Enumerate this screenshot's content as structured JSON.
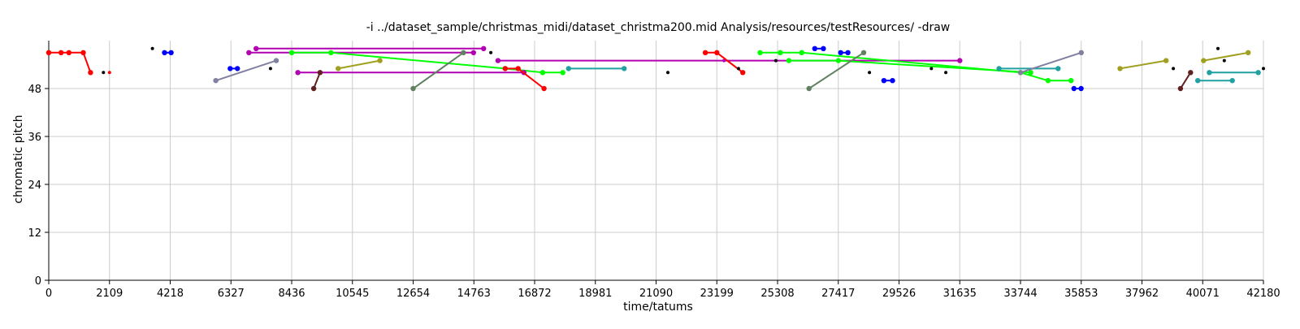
{
  "chart_data": {
    "type": "scatter",
    "title": "-i ../dataset_sample/christmas_midi/dataset_christma200.mid Analysis/resources/testResources/ -draw",
    "xlabel": "time/tatums",
    "ylabel": "chromatic pitch",
    "xlim": [
      0,
      42180
    ],
    "ylim": [
      0,
      60
    ],
    "x_ticks": [
      0,
      2109,
      4218,
      6327,
      8436,
      10545,
      12654,
      14763,
      16872,
      18981,
      21090,
      23199,
      25308,
      27417,
      29526,
      31635,
      33744,
      35853,
      37962,
      40071,
      42180
    ],
    "y_ticks": [
      0,
      12,
      24,
      36,
      48
    ],
    "grid": true,
    "legend": "none",
    "series": [
      {
        "color": "#ff0000",
        "points": [
          [
            0,
            57
          ],
          [
            430,
            57
          ],
          [
            700,
            57
          ],
          [
            1200,
            57
          ],
          [
            1450,
            52
          ]
        ]
      },
      {
        "color": "#ff0000",
        "points": [
          [
            2109,
            52
          ]
        ]
      },
      {
        "color": "#000000",
        "points": [
          [
            1900,
            52
          ]
        ]
      },
      {
        "color": "#000000",
        "points": [
          [
            3600,
            58
          ]
        ]
      },
      {
        "color": "#0000ff",
        "points": [
          [
            4020,
            57
          ],
          [
            4250,
            57
          ]
        ]
      },
      {
        "color": "#8080a0",
        "points": [
          [
            5800,
            50
          ],
          [
            7900,
            55
          ]
        ]
      },
      {
        "color": "#0000ff",
        "points": [
          [
            6300,
            53
          ],
          [
            6550,
            53
          ]
        ]
      },
      {
        "color": "#000000",
        "points": [
          [
            7700,
            53
          ]
        ]
      },
      {
        "color": "#b000b0",
        "points": [
          [
            6950,
            57
          ],
          [
            14750,
            57
          ]
        ]
      },
      {
        "color": "#b000b0",
        "points": [
          [
            7200,
            58
          ],
          [
            15100,
            58
          ]
        ]
      },
      {
        "color": "#000000",
        "points": [
          [
            15350,
            57
          ]
        ]
      },
      {
        "color": "#00ff00",
        "points": [
          [
            8436,
            57
          ],
          [
            9800,
            57
          ],
          [
            15850,
            53
          ],
          [
            17150,
            52
          ],
          [
            17850,
            52
          ]
        ]
      },
      {
        "color": "#b000b0",
        "points": [
          [
            8650,
            52
          ],
          [
            16500,
            52
          ]
        ]
      },
      {
        "color": "#602020",
        "points": [
          [
            9200,
            48
          ],
          [
            9420,
            52
          ]
        ]
      },
      {
        "color": "#a0a020",
        "points": [
          [
            10050,
            53
          ],
          [
            11500,
            55
          ]
        ]
      },
      {
        "color": "#608060",
        "points": [
          [
            12654,
            48
          ],
          [
            14400,
            57
          ]
        ]
      },
      {
        "color": "#b000b0",
        "points": [
          [
            15600,
            55
          ],
          [
            31635,
            55
          ]
        ]
      },
      {
        "color": "#ff0000",
        "points": [
          [
            15850,
            53
          ],
          [
            16300,
            53
          ],
          [
            17200,
            48
          ]
        ]
      },
      {
        "color": "#20a0a0",
        "points": [
          [
            18050,
            53
          ],
          [
            19981,
            53
          ]
        ]
      },
      {
        "color": "#000000",
        "points": [
          [
            21500,
            52
          ]
        ]
      },
      {
        "color": "#ff0000",
        "points": [
          [
            22800,
            57
          ],
          [
            23199,
            57
          ],
          [
            24100,
            52
          ]
        ]
      },
      {
        "color": "#b000b0",
        "points": [
          [
            23450,
            55
          ]
        ]
      },
      {
        "color": "#000000",
        "points": [
          [
            23950,
            53
          ]
        ]
      },
      {
        "color": "#00ff00",
        "points": [
          [
            24700,
            57
          ],
          [
            25400,
            57
          ],
          [
            26150,
            57
          ],
          [
            33744,
            52
          ],
          [
            34700,
            50
          ],
          [
            35500,
            50
          ]
        ]
      },
      {
        "color": "#000000",
        "points": [
          [
            25250,
            55
          ]
        ]
      },
      {
        "color": "#00ff00",
        "points": [
          [
            25700,
            55
          ],
          [
            27417,
            55
          ],
          [
            34100,
            52
          ]
        ]
      },
      {
        "color": "#0000ff",
        "points": [
          [
            26600,
            58
          ],
          [
            26900,
            58
          ]
        ]
      },
      {
        "color": "#608060",
        "points": [
          [
            26400,
            48
          ],
          [
            28300,
            57
          ]
        ]
      },
      {
        "color": "#0000ff",
        "points": [
          [
            27500,
            57
          ],
          [
            27750,
            57
          ]
        ]
      },
      {
        "color": "#000000",
        "points": [
          [
            28500,
            52
          ]
        ]
      },
      {
        "color": "#0000ff",
        "points": [
          [
            29000,
            50
          ],
          [
            29300,
            50
          ]
        ]
      },
      {
        "color": "#000000",
        "points": [
          [
            30650,
            53
          ]
        ]
      },
      {
        "color": "#000000",
        "points": [
          [
            31150,
            52
          ]
        ]
      },
      {
        "color": "#20a0a0",
        "points": [
          [
            33000,
            53
          ],
          [
            35050,
            53
          ]
        ]
      },
      {
        "color": "#8080a0",
        "points": [
          [
            33744,
            52
          ],
          [
            35853,
            57
          ]
        ]
      },
      {
        "color": "#0000ff",
        "points": [
          [
            35600,
            48
          ],
          [
            35850,
            48
          ]
        ]
      },
      {
        "color": "#a0a020",
        "points": [
          [
            37200,
            53
          ],
          [
            38800,
            55
          ]
        ]
      },
      {
        "color": "#000000",
        "points": [
          [
            39050,
            53
          ]
        ]
      },
      {
        "color": "#602020",
        "points": [
          [
            39300,
            48
          ],
          [
            39650,
            52
          ]
        ]
      },
      {
        "color": "#20a0a0",
        "points": [
          [
            39900,
            50
          ],
          [
            41100,
            50
          ]
        ]
      },
      {
        "color": "#20a0a0",
        "points": [
          [
            40300,
            52
          ],
          [
            42000,
            52
          ]
        ]
      },
      {
        "color": "#a0a020",
        "points": [
          [
            40100,
            55
          ],
          [
            41650,
            57
          ]
        ]
      },
      {
        "color": "#000000",
        "points": [
          [
            40600,
            58
          ]
        ]
      },
      {
        "color": "#000000",
        "points": [
          [
            40820,
            55
          ]
        ]
      },
      {
        "color": "#000000",
        "points": [
          [
            42180,
            53
          ]
        ]
      }
    ]
  }
}
